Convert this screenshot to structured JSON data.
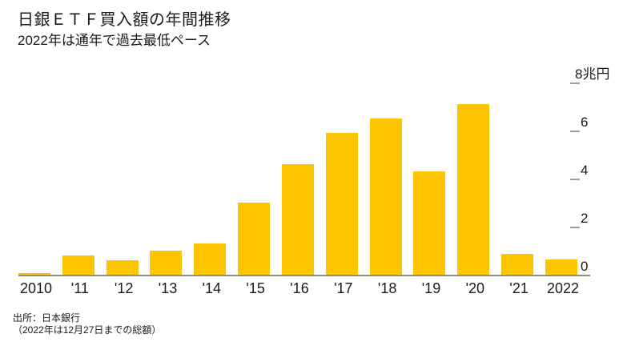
{
  "title": "日銀ＥＴＦ買入額の年間推移",
  "subtitle": "2022年は通年で過去最低ペース",
  "source": {
    "line1": "出所：日本銀行",
    "line2": "（2022年は12月27日までの総額）"
  },
  "colors": {
    "bar": "#fdc500",
    "axis_line": "#8c8c8c",
    "tick": "#9e9e9e",
    "text": "#1a1a1a"
  },
  "chart_data": {
    "type": "bar",
    "title": "日銀ＥＴＦ買入額の年間推移",
    "subtitle": "2022年は通年で過去最低ペース",
    "categories": [
      "2010",
      "'11",
      "'12",
      "'13",
      "'14",
      "'15",
      "'16",
      "'17",
      "'18",
      "'19",
      "'20",
      "'21",
      "2022"
    ],
    "values": [
      0.03,
      0.8,
      0.6,
      1.0,
      1.3,
      3.0,
      4.6,
      5.9,
      6.5,
      4.3,
      7.1,
      0.87,
      0.63
    ],
    "unit": "兆円",
    "xlabel": "",
    "ylabel": "兆円",
    "ylim": [
      0,
      8
    ],
    "y_ticks": [
      0,
      2,
      4,
      6,
      8
    ],
    "y_top_tick_label": "8兆円",
    "grid": false,
    "legend": null,
    "bar_color": "#fdc500"
  }
}
